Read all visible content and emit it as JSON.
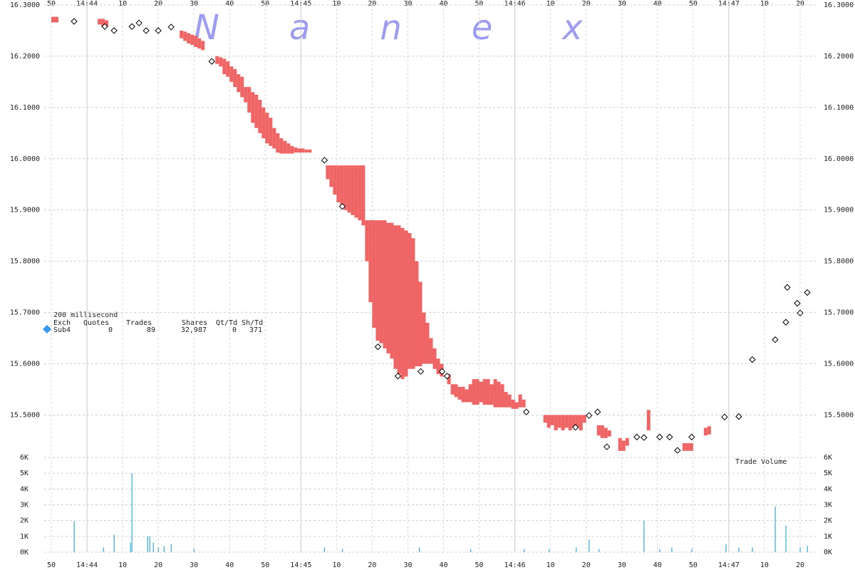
{
  "chart_data": {
    "type": "tick",
    "watermark": "Nanex",
    "annotation": "Trade Volume",
    "legend": {
      "interval": "200 millisecond",
      "headers": [
        "Exch",
        "Quotes",
        "Trades",
        "Shares",
        "Qt/Td",
        "Sh/Td"
      ],
      "row": [
        "Sub4",
        "0",
        "89",
        "32,987",
        "0",
        "371"
      ],
      "marker_color": "#3399ee"
    },
    "xlim": [
      53028,
      53245
    ],
    "xticks": [
      {
        "value": 53030,
        "label": "50"
      },
      {
        "value": 53040,
        "label": "14:44"
      },
      {
        "value": 53050,
        "label": "10"
      },
      {
        "value": 53060,
        "label": "20"
      },
      {
        "value": 53070,
        "label": "30"
      },
      {
        "value": 53080,
        "label": "40"
      },
      {
        "value": 53090,
        "label": "50"
      },
      {
        "value": 53100,
        "label": "14:45"
      },
      {
        "value": 53110,
        "label": "10"
      },
      {
        "value": 53120,
        "label": "20"
      },
      {
        "value": 53130,
        "label": "30"
      },
      {
        "value": 53140,
        "label": "40"
      },
      {
        "value": 53150,
        "label": "50"
      },
      {
        "value": 53160,
        "label": "14:46"
      },
      {
        "value": 53170,
        "label": "10"
      },
      {
        "value": 53180,
        "label": "20"
      },
      {
        "value": 53190,
        "label": "30"
      },
      {
        "value": 53200,
        "label": "40"
      },
      {
        "value": 53210,
        "label": "50"
      },
      {
        "value": 53220,
        "label": "14:47"
      },
      {
        "value": 53230,
        "label": "10"
      },
      {
        "value": 53240,
        "label": "20"
      }
    ],
    "ylim": [
      15.42,
      16.3
    ],
    "yticks": [
      {
        "value": 15.5,
        "label": "15.5000"
      },
      {
        "value": 15.6,
        "label": "15.6000"
      },
      {
        "value": 15.7,
        "label": "15.7000"
      },
      {
        "value": 15.8,
        "label": "15.8000"
      },
      {
        "value": 15.9,
        "label": "15.9000"
      },
      {
        "value": 16.0,
        "label": "16.0000"
      },
      {
        "value": 16.1,
        "label": "16.1000"
      },
      {
        "value": 16.2,
        "label": "16.2000"
      },
      {
        "value": 16.3,
        "label": "16.3000"
      }
    ],
    "quotes": {
      "color": "#ef6464",
      "x": [
        53030,
        53031,
        53043,
        53044,
        53045,
        53066,
        53067,
        53068,
        53069,
        53070,
        53071,
        53072,
        53076,
        53077,
        53078,
        53079,
        53080,
        53081,
        53082,
        53083,
        53084,
        53085,
        53086,
        53087,
        53088,
        53089,
        53090,
        53091,
        53092,
        53093,
        53094,
        53095,
        53096,
        53097,
        53098,
        53099,
        53100,
        53101,
        53102,
        53107,
        53108,
        53109,
        53110,
        53111,
        53112,
        53113,
        53114,
        53115,
        53116,
        53117,
        53118,
        53119,
        53120,
        53121,
        53122,
        53123,
        53124,
        53125,
        53126,
        53127,
        53128,
        53129,
        53130,
        53131,
        53132,
        53133,
        53134,
        53135,
        53136,
        53137,
        53138,
        53139,
        53141,
        53142,
        53143,
        53144,
        53145,
        53146,
        53147,
        53148,
        53149,
        53150,
        53151,
        53152,
        53153,
        53154,
        53155,
        53156,
        53157,
        53158,
        53159,
        53160,
        53161,
        53162,
        53168,
        53169,
        53170,
        53171,
        53172,
        53173,
        53174,
        53175,
        53176,
        53177,
        53178,
        53179,
        53183,
        53184,
        53185,
        53186,
        53189,
        53190,
        53191,
        53197,
        53207,
        53208,
        53209,
        53213,
        53214
      ],
      "low": [
        16.266,
        16.266,
        16.262,
        16.258,
        16.258,
        16.235,
        16.23,
        16.225,
        16.222,
        16.218,
        16.215,
        16.212,
        16.185,
        16.18,
        16.165,
        16.16,
        16.15,
        16.14,
        16.13,
        16.12,
        16.11,
        16.09,
        16.07,
        16.06,
        16.05,
        16.04,
        16.03,
        16.025,
        16.02,
        16.012,
        16.01,
        16.01,
        16.01,
        16.01,
        16.012,
        16.012,
        16.012,
        16.012,
        16.012,
        15.96,
        15.945,
        15.93,
        15.915,
        15.905,
        15.9,
        15.895,
        15.89,
        15.885,
        15.88,
        15.87,
        15.8,
        15.72,
        15.67,
        15.645,
        15.64,
        15.63,
        15.62,
        15.61,
        15.59,
        15.58,
        15.57,
        15.575,
        15.59,
        15.59,
        15.595,
        15.595,
        15.6,
        15.6,
        15.6,
        15.59,
        15.58,
        15.575,
        15.56,
        15.54,
        15.535,
        15.53,
        15.525,
        15.525,
        15.525,
        15.52,
        15.52,
        15.525,
        15.52,
        15.52,
        15.52,
        15.515,
        15.515,
        15.515,
        15.515,
        15.515,
        15.512,
        15.512,
        15.515,
        15.515,
        15.485,
        15.475,
        15.48,
        15.47,
        15.475,
        15.47,
        15.475,
        15.47,
        15.475,
        15.475,
        15.47,
        15.485,
        15.46,
        15.455,
        15.455,
        15.458,
        15.43,
        15.43,
        15.44,
        15.47,
        15.43,
        15.43,
        15.43,
        15.46,
        15.462
      ],
      "high": [
        16.277,
        16.277,
        16.273,
        16.273,
        16.27,
        16.25,
        16.248,
        16.245,
        16.242,
        16.24,
        16.235,
        16.23,
        16.2,
        16.198,
        16.195,
        16.19,
        16.18,
        16.175,
        16.165,
        16.16,
        16.14,
        16.14,
        16.13,
        16.125,
        16.115,
        16.1,
        16.09,
        16.08,
        16.06,
        16.05,
        16.04,
        16.035,
        16.03,
        16.025,
        16.022,
        16.02,
        16.02,
        16.018,
        16.018,
        15.987,
        15.987,
        15.987,
        15.987,
        15.987,
        15.987,
        15.987,
        15.987,
        15.987,
        15.987,
        15.987,
        15.88,
        15.88,
        15.88,
        15.88,
        15.88,
        15.88,
        15.875,
        15.875,
        15.87,
        15.87,
        15.865,
        15.86,
        15.855,
        15.845,
        15.8,
        15.76,
        15.7,
        15.68,
        15.65,
        15.63,
        15.61,
        15.6,
        15.58,
        15.56,
        15.56,
        15.555,
        15.555,
        15.55,
        15.56,
        15.57,
        15.57,
        15.565,
        15.57,
        15.57,
        15.56,
        15.57,
        15.565,
        15.56,
        15.545,
        15.54,
        15.53,
        15.525,
        15.54,
        15.53,
        15.5,
        15.5,
        15.5,
        15.5,
        15.5,
        15.5,
        15.5,
        15.5,
        15.5,
        15.5,
        15.5,
        15.5,
        15.48,
        15.48,
        15.475,
        15.47,
        15.455,
        15.45,
        15.455,
        15.51,
        15.445,
        15.445,
        15.445,
        15.475,
        15.478
      ]
    },
    "trades": {
      "x": [
        53036.4,
        53045,
        53047.6,
        53052.6,
        53054.6,
        53056.6,
        53060,
        53063.6,
        53075,
        53106.6,
        53111.6,
        53121.6,
        53127.2,
        53133.6,
        53139.6,
        53141,
        53163.2,
        53177,
        53180.8,
        53183.2,
        53185.8,
        53194.2,
        53196.2,
        53200.6,
        53203.4,
        53205.6,
        53209.6,
        53218.8,
        53222.8,
        53226.6,
        53233,
        53236,
        53236.4,
        53239.2,
        53240,
        53242
      ],
      "values": [
        16.268,
        16.258,
        16.25,
        16.258,
        16.265,
        16.25,
        16.25,
        16.257,
        16.19,
        15.997,
        15.907,
        15.633,
        15.576,
        15.585,
        15.585,
        15.576,
        15.506,
        15.476,
        15.499,
        15.506,
        15.438,
        15.457,
        15.456,
        15.457,
        15.457,
        15.431,
        15.457,
        15.496,
        15.497,
        15.608,
        15.647,
        15.681,
        15.749,
        15.718,
        15.699,
        15.739
      ]
    },
    "volume": {
      "color": "#33aadd",
      "ylim": [
        0,
        6000
      ],
      "yticks": [
        {
          "value": 0,
          "label": "0K"
        },
        {
          "value": 1000,
          "label": "1K"
        },
        {
          "value": 2000,
          "label": "2K"
        },
        {
          "value": 3000,
          "label": "3K"
        },
        {
          "value": 4000,
          "label": "4K"
        },
        {
          "value": 5000,
          "label": "5K"
        },
        {
          "value": 6000,
          "label": "6K"
        }
      ],
      "x": [
        53036.4,
        53044.6,
        53047.6,
        53052.2,
        53052.6,
        53057,
        53057.6,
        53058.6,
        53060,
        53061.6,
        53063.6,
        53070,
        53106.6,
        53111.6,
        53133.2,
        53147.6,
        53162.6,
        53169.6,
        53177.2,
        53180.8,
        53183.6,
        53196.2,
        53200.6,
        53204,
        53209.6,
        53219.2,
        53222.8,
        53226.6,
        53233,
        53236,
        53240,
        53242
      ],
      "values": [
        1950,
        300,
        1100,
        600,
        5000,
        1000,
        1000,
        600,
        300,
        400,
        500,
        200,
        300,
        200,
        300,
        200,
        200,
        200,
        300,
        800,
        200,
        2000,
        200,
        300,
        200,
        500,
        300,
        300,
        2900,
        1700,
        300,
        400
      ]
    },
    "grid": true
  }
}
